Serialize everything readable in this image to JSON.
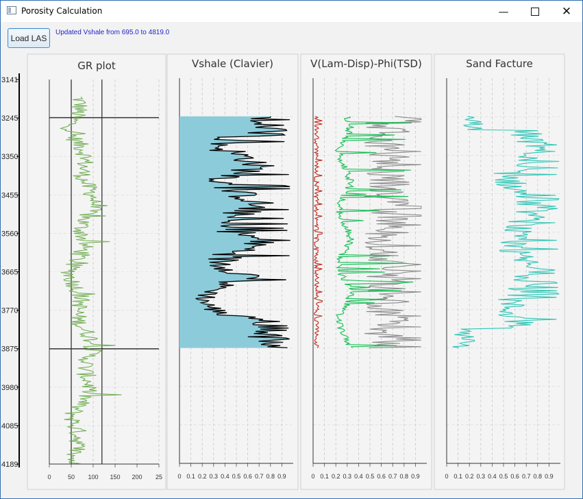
{
  "window": {
    "title": "Porosity Calculation",
    "minimize_icon": "minimize-icon",
    "maximize_icon": "maximize-icon",
    "close_icon": "close-icon"
  },
  "toolbar": {
    "load_label": "Load LAS",
    "status_text": "Updated Vshale from 695.0 to 4819.0"
  },
  "depth_axis": {
    "ticks": [
      "3141",
      "3245",
      "3350",
      "3455",
      "3560",
      "3665",
      "3770",
      "3875",
      "3980",
      "4085",
      "4189"
    ]
  },
  "chart_data": [
    {
      "type": "line",
      "title": "GR plot",
      "xlim": [
        0,
        250
      ],
      "x_ticks": [
        "0",
        "50",
        "100",
        "150",
        "200",
        "25"
      ],
      "ylim": [
        3141,
        4189
      ],
      "vertical_lines": [
        50,
        120
      ],
      "horizontal_lines": [
        3245,
        3875
      ],
      "series": [
        {
          "color": "#6aaa4b"
        }
      ]
    },
    {
      "type": "area",
      "title": "Vshale (Clavier)",
      "xlim": [
        0,
        1
      ],
      "x_ticks": [
        "0",
        "0.1",
        "0.2",
        "0.3",
        "0.4",
        "0.5",
        "0.6",
        "0.7",
        "0.8",
        "0.9"
      ],
      "ylim": [
        3141,
        4189
      ],
      "depth_range": [
        3245,
        3875
      ],
      "series": [
        {
          "color": "#000000"
        },
        {
          "color": "#8ccbda"
        }
      ]
    },
    {
      "type": "line",
      "title": "V(Lam-Disp)-Phi(TSD)",
      "xlim": [
        0,
        1
      ],
      "x_ticks": [
        "0",
        "0.1",
        "0.2",
        "0.3",
        "0.4",
        "0.5",
        "0.6",
        "0.7",
        "0.8",
        "0.9"
      ],
      "ylim": [
        3141,
        4189
      ],
      "depth_range": [
        3245,
        3875
      ],
      "series": [
        {
          "color": "#c0281c"
        },
        {
          "color": "#1ec05a"
        },
        {
          "color": "#8a8a8a"
        }
      ]
    },
    {
      "type": "line",
      "title": "Sand Facture",
      "xlim": [
        0,
        1
      ],
      "x_ticks": [
        "0",
        "0.1",
        "0.2",
        "0.3",
        "0.4",
        "0.5",
        "0.6",
        "0.7",
        "0.8",
        "0.9"
      ],
      "ylim": [
        3141,
        4189
      ],
      "depth_range": [
        3245,
        3875
      ],
      "series": [
        {
          "color": "#2ec5b5"
        }
      ]
    }
  ]
}
